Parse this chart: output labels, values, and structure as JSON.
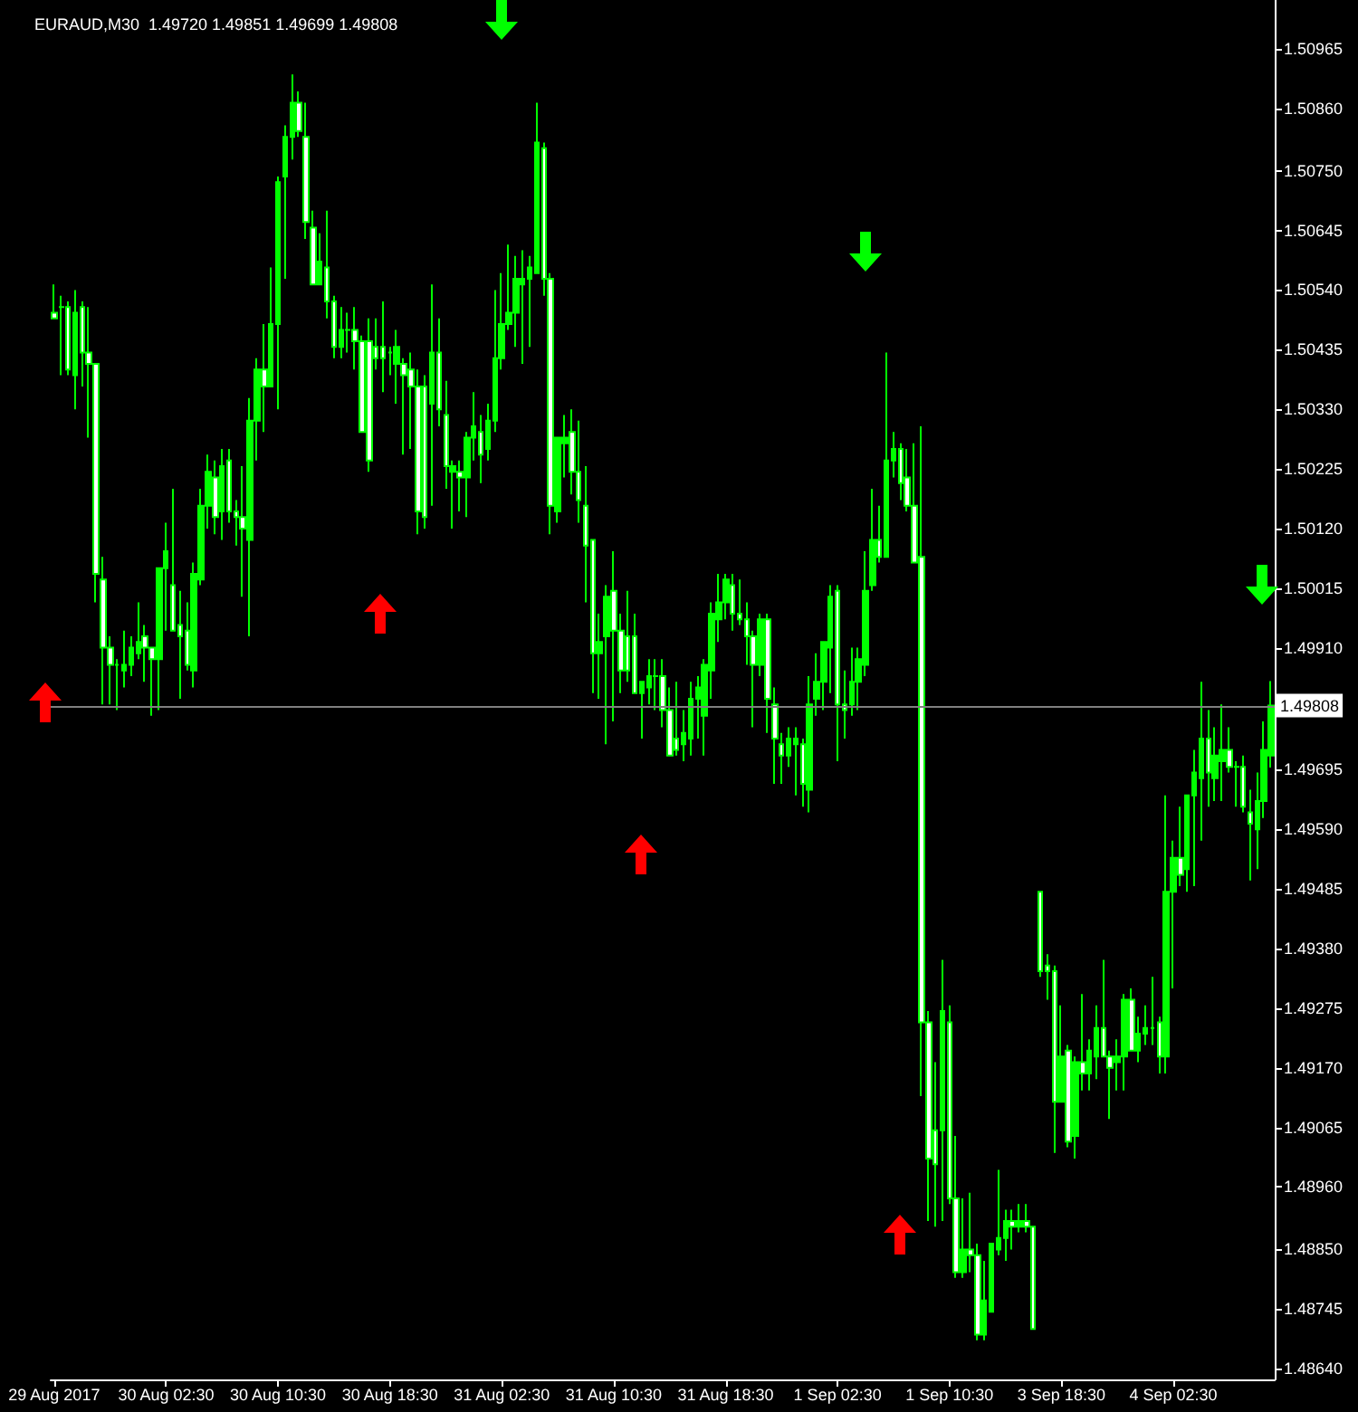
{
  "chart_data": {
    "type": "candlestick",
    "title": "EURAUD,M30  1.49720 1.49851 1.49699 1.49808",
    "categories": [
      "29 Aug 2017",
      null,
      null,
      null,
      null,
      null,
      null,
      null,
      null,
      null,
      null,
      null,
      null,
      null,
      null,
      null,
      "30 Aug 02:30",
      null,
      null,
      null,
      null,
      null,
      null,
      null,
      null,
      null,
      null,
      null,
      null,
      null,
      null,
      null,
      "30 Aug 10:30",
      null,
      null,
      null,
      null,
      null,
      null,
      null,
      null,
      null,
      null,
      null,
      null,
      null,
      null,
      null,
      "30 Aug 18:30",
      null,
      null,
      null,
      null,
      null,
      null,
      null,
      null,
      null,
      null,
      null,
      null,
      null,
      null,
      null,
      "31 Aug 02:30",
      null,
      null,
      null,
      null,
      null,
      null,
      null,
      null,
      null,
      null,
      null,
      null,
      null,
      null,
      null,
      "31 Aug 10:30",
      null,
      null,
      null,
      null,
      null,
      null,
      null,
      null,
      null,
      null,
      null,
      null,
      null,
      null,
      null,
      "31 Aug 18:30",
      null,
      null,
      null,
      null,
      null,
      null,
      null,
      null,
      null,
      null,
      null,
      null,
      null,
      null,
      null,
      "1 Sep 02:30",
      null,
      null,
      null,
      null,
      null,
      null,
      null,
      null,
      null,
      null,
      null,
      null,
      null,
      null,
      null,
      "1 Sep 10:30",
      null,
      null,
      null,
      null,
      null,
      null,
      null,
      null,
      null,
      null,
      null,
      null,
      null,
      null,
      null,
      "3 Sep 18:30",
      null,
      null,
      null,
      null,
      null,
      null,
      null,
      null,
      null,
      null,
      null,
      null,
      null,
      null,
      null,
      "4 Sep 02:30",
      null,
      null,
      null,
      null,
      null,
      null,
      null,
      null,
      null,
      null,
      null,
      null,
      null,
      null
    ],
    "color": "#00ff00",
    "colors": [
      "#ffffff",
      "#00ff00",
      "#ffffff",
      "#00ff00",
      "#ffffff",
      "#ffffff",
      "#ffffff",
      "#ffffff",
      "#ffffff",
      "#00ff00",
      "#00ff00",
      "#00ff00",
      "#00ff00",
      "#ffffff",
      "#ffffff",
      "#00ff00",
      "#00ff00",
      "#ffffff",
      "#ffffff",
      "#ffffff",
      "#00ff00",
      "#00ff00",
      "#00ff00",
      "#ffffff",
      "#00ff00",
      "#ffffff",
      "#ffffff",
      "#ffffff",
      "#00ff00",
      "#00ff00",
      "#ffffff",
      "#00ff00",
      "#00ff00",
      "#00ff00",
      "#00ff00",
      "#ffffff",
      "#ffffff",
      "#ffffff",
      "#00ff00",
      "#ffffff",
      "#ffffff",
      "#00ff00",
      "#00ff00",
      "#ffffff",
      "#ffffff",
      "#ffffff",
      "#ffffff",
      "#ffffff",
      "#00ff00",
      "#00ff00",
      "#ffffff",
      "#ffffff",
      "#ffffff",
      "#ffffff",
      "#00ff00",
      "#ffffff",
      "#ffffff",
      "#00ff00",
      "#ffffff",
      "#00ff00",
      "#00ff00",
      "#ffffff",
      "#00ff00",
      "#00ff00",
      "#00ff00",
      "#00ff00",
      "#00ff00",
      "#00ff00",
      "#00ff00",
      "#00ff00",
      "#ffffff",
      "#ffffff",
      "#00ff00",
      "#00ff00",
      "#ffffff",
      "#ffffff",
      "#ffffff",
      "#ffffff",
      "#00ff00",
      "#00ff00",
      "#ffffff",
      "#ffffff",
      "#ffffff",
      "#ffffff",
      "#00ff00",
      "#00ff00",
      "#00ff00",
      "#ffffff",
      "#ffffff",
      "#ffffff",
      "#00ff00",
      "#00ff00",
      "#00ff00",
      "#00ff00",
      "#00ff00",
      "#00ff00",
      "#00ff00",
      "#ffffff",
      "#ffffff",
      "#ffffff",
      "#ffffff",
      "#00ff00",
      "#ffffff",
      "#ffffff",
      "#ffffff",
      "#00ff00",
      "#00ff00",
      "#ffffff",
      "#00ff00",
      "#00ff00",
      "#00ff00",
      "#00ff00",
      "#ffffff",
      "#ffffff",
      "#00ff00",
      "#00ff00",
      "#00ff00",
      "#00ff00",
      "#ffffff",
      "#00ff00",
      "#00ff00",
      "#ffffff",
      "#ffffff",
      "#ffffff",
      "#ffffff",
      "#ffffff",
      "#ffffff",
      "#00ff00",
      "#ffffff",
      "#ffffff",
      "#00ff00",
      "#ffffff",
      "#ffffff",
      "#00ff00",
      "#00ff00",
      "#00ff00",
      "#00ff00",
      "#ffffff",
      "#00ff00",
      "#ffffff",
      "#ffffff",
      "#ffffff",
      "#ffffff",
      "#ffffff",
      "#00ff00",
      "#ffffff",
      "#00ff00",
      "#ffffff",
      "#00ff00",
      "#00ff00",
      "#ffffff",
      "#ffffff",
      "#00ff00",
      "#00ff00",
      "#ffffff",
      "#00ff00",
      "#00ff00",
      "#00ff00",
      "#ffffff",
      "#00ff00",
      "#00ff00",
      "#ffffff",
      "#00ff00",
      "#00ff00",
      "#00ff00",
      "#ffffff",
      "#00ff00",
      "#00ff00",
      "#ffffff",
      "#00ff00",
      "#ffffff",
      "#ffffff",
      "#00ff00",
      "#00ff00",
      "#00ff00"
    ],
    "ohlc": [
      [
        1.505,
        1.5055,
        1.5049,
        1.5049
      ],
      [
        1.5051,
        1.5053,
        1.5039,
        1.5051
      ],
      [
        1.5051,
        1.5052,
        1.5039,
        1.504
      ],
      [
        1.5039,
        1.5054,
        1.5033,
        1.505
      ],
      [
        1.5051,
        1.5052,
        1.5037,
        1.5043
      ],
      [
        1.5043,
        1.5051,
        1.5028,
        1.5041
      ],
      [
        1.5041,
        1.5041,
        1.4999,
        1.5004
      ],
      [
        1.5003,
        1.5007,
        1.4981,
        1.4991
      ],
      [
        1.4991,
        1.4993,
        1.4981,
        1.4988
      ],
      [
        1.4988,
        1.4989,
        1.498,
        1.4988
      ],
      [
        1.4987,
        1.4994,
        1.4984,
        1.4988
      ],
      [
        1.4988,
        1.4993,
        1.4986,
        1.4991
      ],
      [
        1.499,
        1.4999,
        1.4989,
        1.4992
      ],
      [
        1.4993,
        1.4995,
        1.4985,
        1.4991
      ],
      [
        1.4991,
        1.4991,
        1.4979,
        1.4989
      ],
      [
        1.4989,
        1.5005,
        1.498,
        1.5005
      ],
      [
        1.5005,
        1.5013,
        1.4994,
        1.5008
      ],
      [
        1.5002,
        1.5019,
        1.4994,
        1.4994
      ],
      [
        1.4995,
        1.5001,
        1.4982,
        1.4993
      ],
      [
        1.4994,
        1.4999,
        1.4987,
        1.4988
      ],
      [
        1.4987,
        1.5006,
        1.4984,
        1.5004
      ],
      [
        1.5003,
        1.5019,
        1.5002,
        1.5016
      ],
      [
        1.5016,
        1.5025,
        1.5012,
        1.5022
      ],
      [
        1.5021,
        1.5024,
        1.5011,
        1.5014
      ],
      [
        1.5015,
        1.5026,
        1.501,
        1.5023
      ],
      [
        1.5024,
        1.5026,
        1.5013,
        1.5015
      ],
      [
        1.5015,
        1.5017,
        1.5009,
        1.5014
      ],
      [
        1.5014,
        1.5023,
        1.5,
        1.5012
      ],
      [
        1.501,
        1.5035,
        1.4993,
        1.5031
      ],
      [
        1.5031,
        1.5042,
        1.5024,
        1.504
      ],
      [
        1.504,
        1.5048,
        1.5029,
        1.5037
      ],
      [
        1.5037,
        1.5058,
        1.5037,
        1.5048
      ],
      [
        1.5048,
        1.5074,
        1.5033,
        1.5073
      ],
      [
        1.5074,
        1.5083,
        1.5056,
        1.5081
      ],
      [
        1.5081,
        1.5092,
        1.5077,
        1.5087
      ],
      [
        1.5087,
        1.5089,
        1.5081,
        1.5082
      ],
      [
        1.5081,
        1.5087,
        1.5063,
        1.5066
      ],
      [
        1.5065,
        1.5068,
        1.5055,
        1.5055
      ],
      [
        1.5055,
        1.5064,
        1.5055,
        1.5059
      ],
      [
        1.5058,
        1.5068,
        1.5049,
        1.5052
      ],
      [
        1.5052,
        1.5053,
        1.5042,
        1.5044
      ],
      [
        1.5044,
        1.5051,
        1.5042,
        1.5047
      ],
      [
        1.5047,
        1.505,
        1.5043,
        1.5047
      ],
      [
        1.5047,
        1.5051,
        1.504,
        1.5045
      ],
      [
        1.5045,
        1.5046,
        1.5029,
        1.5029
      ],
      [
        1.5045,
        1.5049,
        1.5022,
        1.5024
      ],
      [
        1.5044,
        1.5049,
        1.504,
        1.5042
      ],
      [
        1.5044,
        1.5052,
        1.5036,
        1.5042
      ],
      [
        1.5043,
        1.5044,
        1.5039,
        1.5043
      ],
      [
        1.5041,
        1.5047,
        1.5034,
        1.5044
      ],
      [
        1.5041,
        1.5042,
        1.5025,
        1.5039
      ],
      [
        1.504,
        1.5043,
        1.5026,
        1.5037
      ],
      [
        1.5037,
        1.504,
        1.5011,
        1.5015
      ],
      [
        1.5037,
        1.5039,
        1.5012,
        1.5014
      ],
      [
        1.5034,
        1.5055,
        1.5016,
        1.5043
      ],
      [
        1.5043,
        1.5049,
        1.503,
        1.5033
      ],
      [
        1.5032,
        1.5038,
        1.5019,
        1.5023
      ],
      [
        1.5022,
        1.5024,
        1.5012,
        1.5023
      ],
      [
        1.5022,
        1.5024,
        1.5015,
        1.5021
      ],
      [
        1.5021,
        1.5029,
        1.5014,
        1.5028
      ],
      [
        1.5028,
        1.5036,
        1.5024,
        1.503
      ],
      [
        1.5029,
        1.5032,
        1.502,
        1.5025
      ],
      [
        1.5026,
        1.5034,
        1.5024,
        1.5031
      ],
      [
        1.5031,
        1.5054,
        1.5029,
        1.5042
      ],
      [
        1.5042,
        1.5057,
        1.504,
        1.5048
      ],
      [
        1.5048,
        1.5062,
        1.5047,
        1.505
      ],
      [
        1.505,
        1.506,
        1.5044,
        1.5056
      ],
      [
        1.5055,
        1.5061,
        1.5041,
        1.5056
      ],
      [
        1.5056,
        1.506,
        1.5044,
        1.5058
      ],
      [
        1.5057,
        1.5087,
        1.5057,
        1.508
      ],
      [
        1.5079,
        1.508,
        1.5053,
        1.5056
      ],
      [
        1.5056,
        1.5057,
        1.5011,
        1.5016
      ],
      [
        1.5015,
        1.5028,
        1.5013,
        1.5028
      ],
      [
        1.5027,
        1.5032,
        1.5021,
        1.5028
      ],
      [
        1.5029,
        1.5033,
        1.5018,
        1.5022
      ],
      [
        1.5022,
        1.5031,
        1.5013,
        1.5017
      ],
      [
        1.5016,
        1.5023,
        1.4999,
        1.5009
      ],
      [
        1.501,
        1.501,
        1.4983,
        1.499
      ],
      [
        1.499,
        1.4997,
        1.4982,
        1.4992
      ],
      [
        1.4993,
        1.5002,
        1.4974,
        1.5
      ],
      [
        1.5001,
        1.5008,
        1.4978,
        1.4994
      ],
      [
        1.4994,
        1.4997,
        1.4983,
        1.4987
      ],
      [
        1.4993,
        1.5001,
        1.4985,
        1.4987
      ],
      [
        1.4993,
        1.4997,
        1.4983,
        1.4983
      ],
      [
        1.4983,
        1.4985,
        1.4975,
        1.4985
      ],
      [
        1.4984,
        1.4989,
        1.4981,
        1.4986
      ],
      [
        1.4986,
        1.4989,
        1.498,
        1.4986
      ],
      [
        1.4986,
        1.4989,
        1.4977,
        1.498
      ],
      [
        1.498,
        1.4984,
        1.4972,
        1.4972
      ],
      [
        1.4975,
        1.4985,
        1.4972,
        1.4973
      ],
      [
        1.4974,
        1.498,
        1.4971,
        1.4976
      ],
      [
        1.4975,
        1.4985,
        1.4972,
        1.4982
      ],
      [
        1.4982,
        1.4986,
        1.4975,
        1.4984
      ],
      [
        1.4979,
        1.4989,
        1.4972,
        1.4988
      ],
      [
        1.4987,
        1.4999,
        1.4982,
        1.4997
      ],
      [
        1.4996,
        1.5004,
        1.4992,
        1.4999
      ],
      [
        1.4999,
        1.5004,
        1.4996,
        1.5003
      ],
      [
        1.5002,
        1.5004,
        1.4994,
        1.4997
      ],
      [
        1.4997,
        1.5003,
        1.4995,
        1.4996
      ],
      [
        1.4996,
        1.4999,
        1.4988,
        1.4993
      ],
      [
        1.4993,
        1.4994,
        1.4977,
        1.4988
      ],
      [
        1.4988,
        1.4997,
        1.4986,
        1.4996
      ],
      [
        1.4996,
        1.4997,
        1.4976,
        1.4982
      ],
      [
        1.4981,
        1.4984,
        1.4967,
        1.4975
      ],
      [
        1.4974,
        1.4976,
        1.4967,
        1.4972
      ],
      [
        1.4972,
        1.4977,
        1.497,
        1.4975
      ],
      [
        1.4974,
        1.4977,
        1.4965,
        1.4975
      ],
      [
        1.4974,
        1.4975,
        1.4963,
        1.4967
      ],
      [
        1.4966,
        1.4986,
        1.4962,
        1.4981
      ],
      [
        1.4982,
        1.499,
        1.4979,
        1.4985
      ],
      [
        1.4985,
        1.4992,
        1.498,
        1.4992
      ],
      [
        1.4991,
        1.5002,
        1.4983,
        1.5
      ],
      [
        1.5001,
        1.5002,
        1.4971,
        1.4981
      ],
      [
        1.4981,
        1.4987,
        1.4975,
        1.498
      ],
      [
        1.4981,
        1.4991,
        1.4979,
        1.4985
      ],
      [
        1.4985,
        1.4991,
        1.498,
        1.4989
      ],
      [
        1.4988,
        1.5008,
        1.4986,
        1.5001
      ],
      [
        1.5002,
        1.5019,
        1.5001,
        1.501
      ],
      [
        1.501,
        1.5016,
        1.5006,
        1.5007
      ],
      [
        1.5007,
        1.5043,
        1.5007,
        1.5024
      ],
      [
        1.5024,
        1.5029,
        1.5021,
        1.5026
      ],
      [
        1.5026,
        1.5027,
        1.5017,
        1.502
      ],
      [
        1.5021,
        1.5026,
        1.5015,
        1.5016
      ],
      [
        1.5016,
        1.5027,
        1.5006,
        1.5006
      ],
      [
        1.5007,
        1.503,
        1.4912,
        1.4925
      ],
      [
        1.4925,
        1.4927,
        1.489,
        1.4901
      ],
      [
        1.4906,
        1.4918,
        1.4889,
        1.49
      ],
      [
        1.4906,
        1.4936,
        1.489,
        1.4927
      ],
      [
        1.4925,
        1.4928,
        1.4893,
        1.4894
      ],
      [
        1.4894,
        1.4905,
        1.488,
        1.4881
      ],
      [
        1.4881,
        1.4894,
        1.488,
        1.4885
      ],
      [
        1.4885,
        1.4895,
        1.4881,
        1.4884
      ],
      [
        1.4884,
        1.4886,
        1.4869,
        1.487
      ],
      [
        1.487,
        1.4883,
        1.4869,
        1.4876
      ],
      [
        1.4874,
        1.4886,
        1.4874,
        1.4886
      ],
      [
        1.4885,
        1.4899,
        1.4884,
        1.4887
      ],
      [
        1.4887,
        1.4892,
        1.4883,
        1.489
      ],
      [
        1.489,
        1.4892,
        1.4885,
        1.4889
      ],
      [
        1.4889,
        1.4893,
        1.4888,
        1.489
      ],
      [
        1.489,
        1.4893,
        1.4888,
        1.4889
      ],
      [
        1.4889,
        1.4889,
        1.4871,
        1.4871
      ],
      [
        1.4948,
        1.4948,
        1.4933,
        1.4934
      ],
      [
        1.4935,
        1.4937,
        1.4929,
        1.4934
      ],
      [
        1.4934,
        1.4935,
        1.4902,
        1.4911
      ],
      [
        1.4911,
        1.4928,
        1.4911,
        1.4919
      ],
      [
        1.492,
        1.4921,
        1.4903,
        1.4904
      ],
      [
        1.4905,
        1.4919,
        1.4901,
        1.4918
      ],
      [
        1.4918,
        1.493,
        1.4913,
        1.4916
      ],
      [
        1.4916,
        1.4922,
        1.4913,
        1.492
      ],
      [
        1.4919,
        1.4928,
        1.4915,
        1.4924
      ],
      [
        1.4924,
        1.4936,
        1.4919,
        1.4919
      ],
      [
        1.4919,
        1.492,
        1.4908,
        1.4917
      ],
      [
        1.4918,
        1.4922,
        1.4913,
        1.4919
      ],
      [
        1.4919,
        1.493,
        1.4913,
        1.4929
      ],
      [
        1.4929,
        1.4931,
        1.492,
        1.492
      ],
      [
        1.492,
        1.4926,
        1.4918,
        1.4923
      ],
      [
        1.4923,
        1.4928,
        1.4921,
        1.4924
      ],
      [
        1.4924,
        1.4933,
        1.4921,
        1.4924
      ],
      [
        1.4925,
        1.4926,
        1.4916,
        1.4919
      ],
      [
        1.4919,
        1.4965,
        1.4916,
        1.4948
      ],
      [
        1.4948,
        1.4957,
        1.4931,
        1.4954
      ],
      [
        1.4954,
        1.4963,
        1.4949,
        1.4951
      ],
      [
        1.4952,
        1.4965,
        1.4948,
        1.4965
      ],
      [
        1.4965,
        1.4973,
        1.4949,
        1.4969
      ],
      [
        1.4968,
        1.4985,
        1.4957,
        1.4975
      ],
      [
        1.4975,
        1.498,
        1.4963,
        1.4969
      ],
      [
        1.4968,
        1.4977,
        1.4964,
        1.4972
      ],
      [
        1.4971,
        1.4981,
        1.4964,
        1.4973
      ],
      [
        1.4973,
        1.4977,
        1.4969,
        1.497
      ],
      [
        1.497,
        1.4971,
        1.4963,
        1.497
      ],
      [
        1.497,
        1.4972,
        1.4962,
        1.4963
      ],
      [
        1.4962,
        1.4966,
        1.495,
        1.496
      ],
      [
        1.4959,
        1.4969,
        1.4952,
        1.4964
      ],
      [
        1.4964,
        1.4978,
        1.4961,
        1.4973
      ],
      [
        1.4972,
        1.49851,
        1.49699,
        1.49808
      ]
    ],
    "ylim": [
      1.48621,
      1.51051
    ],
    "yticks": [
      1.50965,
      {
        "value": 1.5086,
        "label": "1.50860"
      },
      {
        "value": 1.5075,
        "label": "1.50750"
      },
      1.50645,
      {
        "value": 1.5054,
        "label": "1.50540"
      },
      1.50435,
      {
        "value": 1.5033,
        "label": "1.50330"
      },
      1.50225,
      {
        "value": 1.5012,
        "label": "1.50120"
      },
      1.50015,
      {
        "value": 1.4991,
        "label": "1.49910"
      },
      1.49695,
      {
        "value": 1.4959,
        "label": "1.49590"
      },
      1.49485,
      {
        "value": 1.4938,
        "label": "1.49380"
      },
      1.49275,
      {
        "value": 1.4917,
        "label": "1.49170"
      },
      1.49065,
      {
        "value": 1.4896,
        "label": "1.48960"
      },
      {
        "value": 1.4885,
        "label": "1.48850"
      },
      1.48745,
      {
        "value": 1.4864,
        "label": "1.48640"
      }
    ],
    "ref_lines": [
      {
        "axis": "y",
        "value": 1.49808,
        "label": "1.49808",
        "color": "#808080"
      }
    ]
  }
}
